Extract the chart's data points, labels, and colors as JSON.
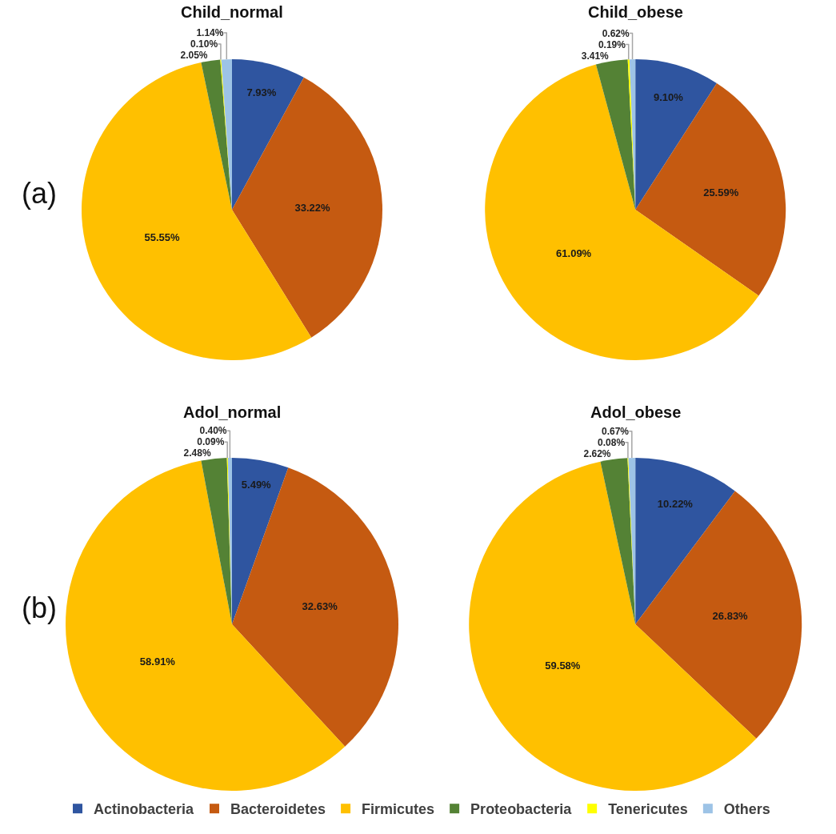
{
  "chart_data": {
    "type": "pie",
    "categories": [
      "Actinobacteria",
      "Bacteroidetes",
      "Firmicutes",
      "Proteobacteria",
      "Tenericutes",
      "Others"
    ],
    "colors": [
      "#2f55a0",
      "#c55a11",
      "#ffc000",
      "#548235",
      "#ffff00",
      "#9dc3e6"
    ],
    "series": [
      {
        "name": "Child_normal",
        "values": [
          7.93,
          33.22,
          55.55,
          2.05,
          0.1,
          1.14
        ],
        "value_labels": [
          "7.93%",
          "33.22%",
          "55.55%",
          "2.05%",
          "0.10%",
          "1.14%"
        ]
      },
      {
        "name": "Child_obese",
        "values": [
          9.1,
          25.59,
          61.09,
          3.41,
          0.19,
          0.62
        ],
        "value_labels": [
          "9.10%",
          "25.59%",
          "61.09%",
          "3.41%",
          "0.19%",
          "0.62%"
        ]
      },
      {
        "name": "Adol_normal",
        "values": [
          5.49,
          32.63,
          58.91,
          2.48,
          0.09,
          0.4
        ],
        "value_labels": [
          "5.49%",
          "32.63%",
          "58.91%",
          "2.48%",
          "0.09%",
          "0.40%"
        ]
      },
      {
        "name": "Adol_obese",
        "values": [
          10.22,
          26.83,
          59.58,
          2.62,
          0.08,
          0.67
        ],
        "value_labels": [
          "10.22%",
          "26.83%",
          "59.58%",
          "2.62%",
          "0.08%",
          "0.67%"
        ]
      }
    ],
    "annotations": [
      "(a)",
      "(b)"
    ],
    "legend": "bottom"
  }
}
